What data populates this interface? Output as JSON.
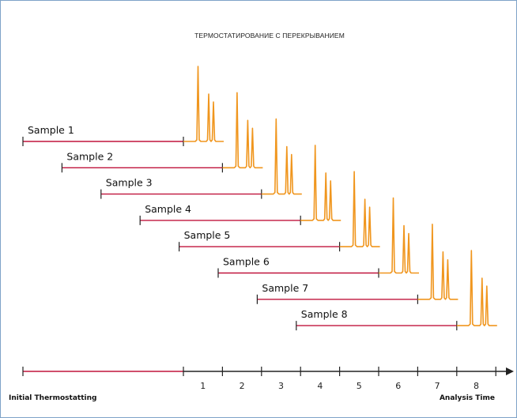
{
  "title": "ТЕРМОСТАТИРОВАНИЕ С ПЕРЕКРЫВАНИЕМ",
  "samples": [
    "Sample 1",
    "Sample 2",
    "Sample 3",
    "Sample 4",
    "Sample 5",
    "Sample 6",
    "Sample 7",
    "Sample 8"
  ],
  "axis": {
    "left_label": "Initial Thermostatting",
    "right_label": "Analysis Time",
    "ticks": [
      "1",
      "2",
      "3",
      "4",
      "5",
      "6",
      "7",
      "8"
    ]
  },
  "colors": {
    "thermostat_line": "#c0143c",
    "chromatogram": "#f0961e",
    "axis": "#222222",
    "tick": "#222222",
    "border": "#7ea3c8"
  }
}
